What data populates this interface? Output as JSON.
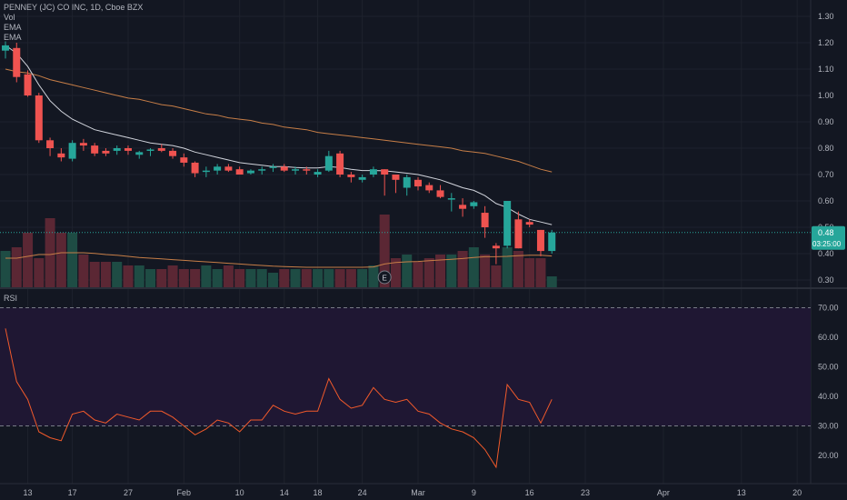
{
  "legend": {
    "symbol_title": "PENNEY (JC) CO INC, 1D, Cboe BZX",
    "vol_label": "Vol",
    "ema_label_1": "EMA",
    "ema_label_2": "EMA"
  },
  "rsi_pane": {
    "title": "RSI"
  },
  "price_axis": {
    "ticks": [
      "1.30",
      "1.20",
      "1.10",
      "1.00",
      "0.90",
      "0.80",
      "0.70",
      "0.60",
      "0.50",
      "0.40",
      "0.30"
    ],
    "last_price_label": "0.48",
    "countdown_label": "03:25:00"
  },
  "rsi_axis": {
    "ticks": [
      "70.00",
      "60.00",
      "50.00",
      "40.00",
      "30.00",
      "20.00"
    ]
  },
  "time_axis": {
    "labels": [
      {
        "label": "13",
        "i": 2
      },
      {
        "label": "17",
        "i": 6
      },
      {
        "label": "27",
        "i": 11
      },
      {
        "label": "Feb",
        "i": 16
      },
      {
        "label": "10",
        "i": 21
      },
      {
        "label": "14",
        "i": 25
      },
      {
        "label": "18",
        "i": 28
      },
      {
        "label": "24",
        "i": 32
      },
      {
        "label": "Mar",
        "i": 37
      },
      {
        "label": "9",
        "i": 42
      },
      {
        "label": "16",
        "i": 47
      },
      {
        "label": "23",
        "i": 52
      },
      {
        "label": "Apr",
        "i": 59
      },
      {
        "label": "13",
        "i": 66
      },
      {
        "label": "20",
        "i": 71
      }
    ]
  },
  "earnings_marker": {
    "label": "E",
    "i": 34
  },
  "colors": {
    "background": "#131722",
    "up": "#26a69a",
    "down": "#ef5350",
    "vol_up": "#1e4c44",
    "vol_down": "#5b2734",
    "ema_fast": "#d1d4dc",
    "ema_slow": "#c77e47",
    "rsi_line": "#f25a2b",
    "rsi_band": "#1f1733",
    "grid": "#1e222d"
  },
  "chart_data": [
    {
      "type": "candlestick",
      "title": "PENNEY (JC) CO INC, 1D, Cboe BZX",
      "ylim": [
        0.27,
        1.33
      ],
      "ohlc": [
        [
          1.17,
          1.205,
          1.14,
          1.19
        ],
        [
          1.18,
          1.2,
          1.05,
          1.07
        ],
        [
          1.08,
          1.095,
          0.995,
          1.0
        ],
        [
          1.0,
          1.01,
          0.82,
          0.83
        ],
        [
          0.83,
          0.84,
          0.77,
          0.8
        ],
        [
          0.78,
          0.8,
          0.75,
          0.765
        ],
        [
          0.76,
          0.83,
          0.75,
          0.82
        ],
        [
          0.82,
          0.835,
          0.79,
          0.81
        ],
        [
          0.81,
          0.82,
          0.77,
          0.78
        ],
        [
          0.79,
          0.8,
          0.77,
          0.78
        ],
        [
          0.79,
          0.81,
          0.775,
          0.8
        ],
        [
          0.8,
          0.81,
          0.775,
          0.79
        ],
        [
          0.775,
          0.79,
          0.76,
          0.785
        ],
        [
          0.79,
          0.8,
          0.77,
          0.795
        ],
        [
          0.8,
          0.815,
          0.785,
          0.79
        ],
        [
          0.79,
          0.8,
          0.76,
          0.77
        ],
        [
          0.765,
          0.78,
          0.73,
          0.745
        ],
        [
          0.745,
          0.75,
          0.69,
          0.705
        ],
        [
          0.71,
          0.73,
          0.69,
          0.715
        ],
        [
          0.715,
          0.74,
          0.7,
          0.73
        ],
        [
          0.73,
          0.74,
          0.71,
          0.715
        ],
        [
          0.72,
          0.73,
          0.7,
          0.7
        ],
        [
          0.705,
          0.72,
          0.7,
          0.715
        ],
        [
          0.715,
          0.73,
          0.7,
          0.72
        ],
        [
          0.73,
          0.74,
          0.71,
          0.73
        ],
        [
          0.73,
          0.74,
          0.71,
          0.715
        ],
        [
          0.72,
          0.73,
          0.7,
          0.72
        ],
        [
          0.72,
          0.73,
          0.7,
          0.715
        ],
        [
          0.7,
          0.72,
          0.69,
          0.71
        ],
        [
          0.715,
          0.79,
          0.71,
          0.77
        ],
        [
          0.78,
          0.79,
          0.69,
          0.7
        ],
        [
          0.7,
          0.71,
          0.67,
          0.69
        ],
        [
          0.68,
          0.7,
          0.67,
          0.69
        ],
        [
          0.7,
          0.73,
          0.69,
          0.72
        ],
        [
          0.72,
          0.72,
          0.62,
          0.7
        ],
        [
          0.7,
          0.7,
          0.63,
          0.68
        ],
        [
          0.65,
          0.7,
          0.62,
          0.69
        ],
        [
          0.68,
          0.69,
          0.64,
          0.655
        ],
        [
          0.66,
          0.67,
          0.63,
          0.64
        ],
        [
          0.64,
          0.66,
          0.61,
          0.615
        ],
        [
          0.61,
          0.63,
          0.56,
          0.61
        ],
        [
          0.585,
          0.61,
          0.54,
          0.57
        ],
        [
          0.58,
          0.6,
          0.57,
          0.595
        ],
        [
          0.555,
          0.58,
          0.46,
          0.5
        ],
        [
          0.43,
          0.44,
          0.36,
          0.42
        ],
        [
          0.43,
          0.6,
          0.42,
          0.6
        ],
        [
          0.53,
          0.56,
          0.42,
          0.42
        ],
        [
          0.52,
          0.53,
          0.5,
          0.51
        ],
        [
          0.49,
          0.49,
          0.39,
          0.41
        ],
        [
          0.41,
          0.49,
          0.4,
          0.48
        ]
      ],
      "ema_fast": [
        1.19,
        1.16,
        1.11,
        1.04,
        0.98,
        0.94,
        0.91,
        0.89,
        0.87,
        0.86,
        0.85,
        0.84,
        0.83,
        0.82,
        0.815,
        0.81,
        0.8,
        0.785,
        0.775,
        0.765,
        0.755,
        0.745,
        0.74,
        0.735,
        0.73,
        0.73,
        0.727,
        0.725,
        0.725,
        0.73,
        0.727,
        0.72,
        0.715,
        0.715,
        0.714,
        0.71,
        0.705,
        0.7,
        0.69,
        0.68,
        0.665,
        0.65,
        0.64,
        0.62,
        0.59,
        0.575,
        0.55,
        0.53,
        0.52,
        0.51
      ],
      "ema_slow": [
        1.1,
        1.09,
        1.085,
        1.075,
        1.06,
        1.05,
        1.04,
        1.03,
        1.02,
        1.01,
        1.0,
        0.99,
        0.985,
        0.975,
        0.965,
        0.96,
        0.95,
        0.94,
        0.93,
        0.925,
        0.915,
        0.91,
        0.905,
        0.895,
        0.89,
        0.88,
        0.875,
        0.87,
        0.86,
        0.855,
        0.85,
        0.845,
        0.84,
        0.835,
        0.83,
        0.825,
        0.82,
        0.815,
        0.81,
        0.805,
        0.8,
        0.79,
        0.785,
        0.78,
        0.77,
        0.76,
        0.75,
        0.735,
        0.72,
        0.71
      ]
    },
    {
      "type": "bar",
      "title": "Vol",
      "values": [
        10,
        11,
        15,
        8,
        19,
        15,
        15,
        9,
        7,
        7,
        7,
        6,
        6,
        5,
        5,
        6,
        5,
        5,
        6,
        5,
        6,
        5,
        5,
        5,
        4,
        5,
        5,
        5,
        5,
        5,
        5,
        5,
        5,
        6,
        20,
        8,
        9,
        7,
        8,
        9,
        9,
        10,
        11,
        9,
        6,
        11,
        10,
        8,
        8,
        3
      ],
      "ema": [
        8,
        8,
        8.5,
        9,
        9,
        9.5,
        9.5,
        9.5,
        9.3,
        9,
        8.8,
        8.5,
        8.2,
        8,
        7.8,
        7.6,
        7.4,
        7.2,
        7,
        6.8,
        6.6,
        6.4,
        6.2,
        6,
        5.8,
        5.7,
        5.6,
        5.5,
        5.5,
        5.5,
        5.5,
        5.5,
        5.5,
        5.6,
        6.4,
        6.8,
        7,
        7.1,
        7.3,
        7.5,
        7.7,
        7.9,
        8.2,
        8.4,
        8.4,
        8.5,
        8.7,
        8.8,
        8.8,
        8.6
      ]
    },
    {
      "type": "line",
      "title": "RSI",
      "ylim": [
        11,
        73
      ],
      "hlines": [
        70,
        30
      ],
      "values": [
        63,
        45,
        39,
        28,
        26,
        25,
        34,
        35,
        32,
        31,
        34,
        33,
        32,
        35,
        35,
        33,
        30,
        27,
        29,
        32,
        31,
        28,
        32,
        32,
        37,
        35,
        34,
        35,
        35,
        46,
        39,
        36,
        37,
        43,
        39,
        38,
        39,
        35,
        34,
        31,
        29,
        28,
        26,
        22,
        16,
        44,
        39,
        38,
        31,
        39
      ]
    }
  ]
}
